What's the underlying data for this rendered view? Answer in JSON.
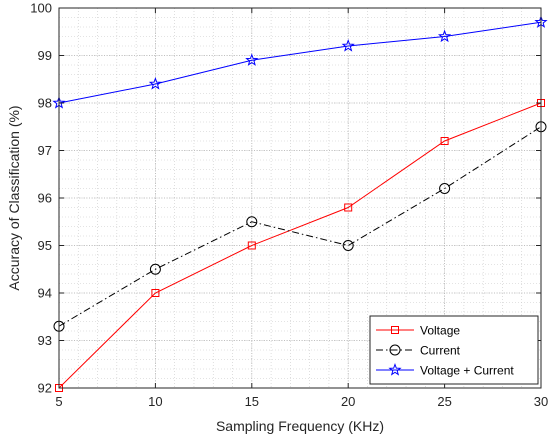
{
  "chart_data": {
    "type": "line",
    "title": "",
    "xlabel": "Sampling Frequency (KHz)",
    "ylabel": "Accuracy of Classification (%)",
    "x": [
      5,
      10,
      15,
      20,
      25,
      30
    ],
    "xlim": [
      5,
      30
    ],
    "ylim": [
      92,
      100
    ],
    "xticks": [
      5,
      10,
      15,
      20,
      25,
      30
    ],
    "yticks": [
      92,
      93,
      94,
      95,
      96,
      97,
      98,
      99,
      100
    ],
    "grid": true,
    "minor_grid": true,
    "legend_position": "bottom-right",
    "series": [
      {
        "name": "Voltage",
        "values": [
          92.0,
          94.0,
          95.0,
          95.8,
          97.2,
          98.0
        ],
        "color": "#ff0000",
        "marker": "square",
        "line_style": "solid"
      },
      {
        "name": "Current",
        "values": [
          93.3,
          94.5,
          95.5,
          95.0,
          96.2,
          97.5
        ],
        "color": "#000000",
        "marker": "circle",
        "line_style": "dash-dot"
      },
      {
        "name": "Voltage + Current",
        "values": [
          98.0,
          98.4,
          98.9,
          99.2,
          99.4,
          99.7
        ],
        "color": "#0000ff",
        "marker": "star",
        "line_style": "solid"
      }
    ]
  }
}
